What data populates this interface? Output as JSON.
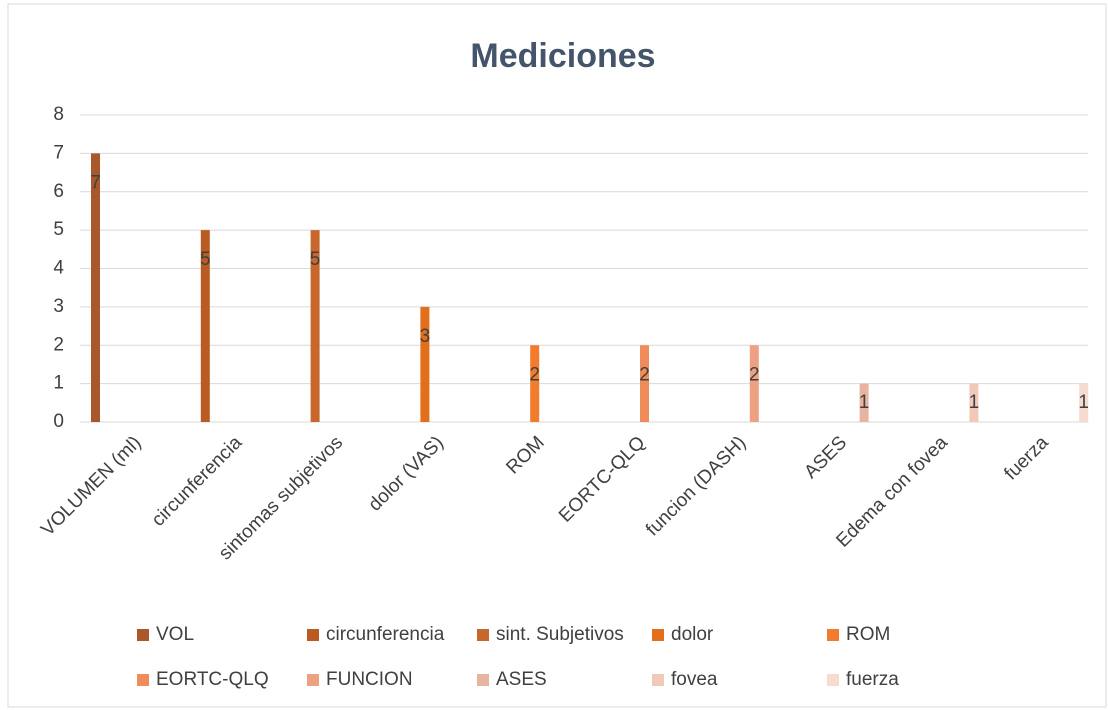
{
  "chart_data": {
    "type": "bar",
    "title": "Mediciones",
    "categories": [
      "VOLUMEN (ml)",
      "circunferencia",
      "sintomas subjetivos",
      "dolor (VAS)",
      "ROM",
      "EORTC-QLQ",
      "funcion (DASH)",
      "ASES",
      "Edema con fovea",
      "fuerza"
    ],
    "series": [
      {
        "name": "VOL",
        "color": "#a9582c",
        "values": [
          7,
          null,
          null,
          null,
          null,
          null,
          null,
          null,
          null,
          null
        ]
      },
      {
        "name": "circunferencia",
        "color": "#b95b22",
        "values": [
          null,
          5,
          null,
          null,
          null,
          null,
          null,
          null,
          null,
          null
        ]
      },
      {
        "name": "sint. Subjetivos",
        "color": "#c8672c",
        "values": [
          null,
          null,
          5,
          null,
          null,
          null,
          null,
          null,
          null,
          null
        ]
      },
      {
        "name": "dolor",
        "color": "#e36e1c",
        "values": [
          null,
          null,
          null,
          3,
          null,
          null,
          null,
          null,
          null,
          null
        ]
      },
      {
        "name": "ROM",
        "color": "#f27b2c",
        "values": [
          null,
          null,
          null,
          null,
          2,
          null,
          null,
          null,
          null,
          null
        ]
      },
      {
        "name": "EORTC-QLQ",
        "color": "#f08c5a",
        "values": [
          null,
          null,
          null,
          null,
          null,
          2,
          null,
          null,
          null,
          null
        ]
      },
      {
        "name": "FUNCION",
        "color": "#eda182",
        "values": [
          null,
          null,
          null,
          null,
          null,
          null,
          2,
          null,
          null,
          null
        ]
      },
      {
        "name": "ASES",
        "color": "#e9b3a2",
        "values": [
          null,
          null,
          null,
          null,
          null,
          null,
          null,
          1,
          null,
          null
        ]
      },
      {
        "name": "fovea",
        "color": "#f1c9b8",
        "values": [
          null,
          null,
          null,
          null,
          null,
          null,
          null,
          null,
          1,
          null
        ]
      },
      {
        "name": "fuerza",
        "color": "#f6dbcf",
        "values": [
          null,
          null,
          null,
          null,
          null,
          null,
          null,
          null,
          null,
          1
        ]
      }
    ],
    "ylim": [
      0,
      8
    ],
    "yticks": [
      0,
      1,
      2,
      3,
      4,
      5,
      6,
      7,
      8
    ],
    "grid": true,
    "legend": "bottom"
  }
}
